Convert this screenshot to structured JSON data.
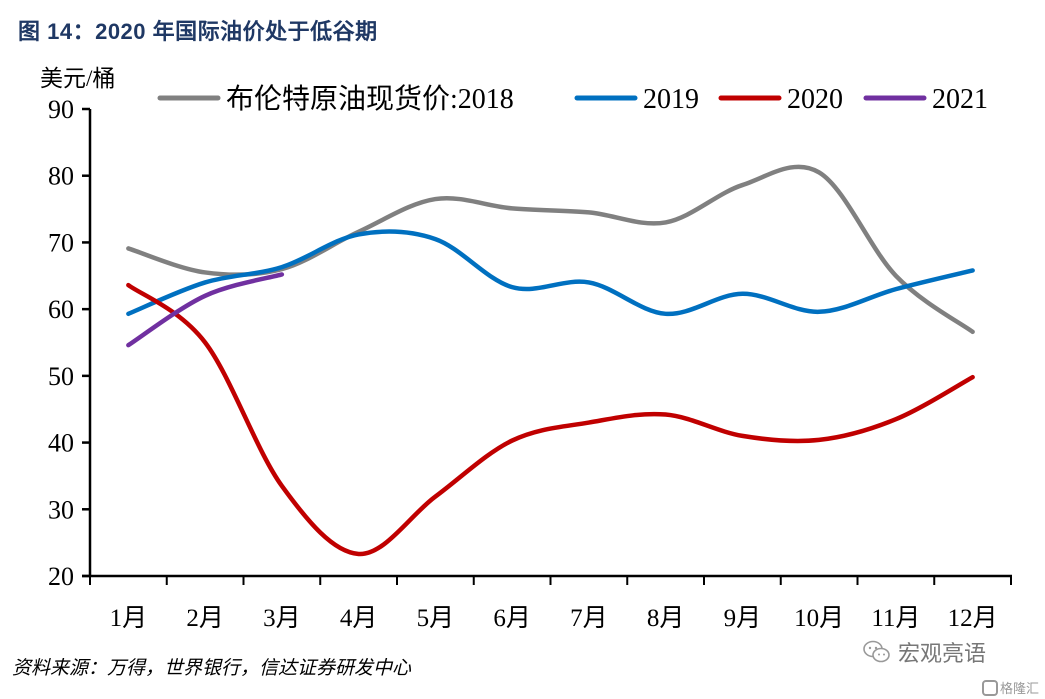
{
  "header": {
    "title": "图 14：2020 年国际油价处于低谷期"
  },
  "footer": {
    "source": "资料来源：万得，世界银行，信达证券研发中心"
  },
  "watermark": {
    "text": "宏观亮语",
    "logo_text": "格隆汇"
  },
  "chart_data": {
    "type": "line",
    "title": "图 14：2020 年国际油价处于低谷期",
    "ylabel": "美元/桶",
    "xlabel": "",
    "ylim": [
      20,
      90
    ],
    "yticks": [
      20,
      30,
      40,
      50,
      60,
      70,
      80,
      90
    ],
    "categories": [
      "1月",
      "2月",
      "3月",
      "4月",
      "5月",
      "6月",
      "7月",
      "8月",
      "9月",
      "10月",
      "11月",
      "12月"
    ],
    "legend_position": "top",
    "grid": false,
    "series": [
      {
        "name": "布伦特原油现货价:2018",
        "color": "#808080",
        "values": [
          69.1,
          65.5,
          66.0,
          71.6,
          76.5,
          75.1,
          74.5,
          73.0,
          78.6,
          80.5,
          65.0,
          56.6
        ]
      },
      {
        "name": "2019",
        "color": "#0070c0",
        "values": [
          59.3,
          64.0,
          66.3,
          71.2,
          70.5,
          63.3,
          64.0,
          59.3,
          62.3,
          59.6,
          63.0,
          65.8
        ]
      },
      {
        "name": "2020",
        "color": "#c00000",
        "values": [
          63.6,
          55.0,
          33.5,
          23.3,
          31.9,
          40.3,
          43.0,
          44.2,
          41.0,
          40.4,
          43.5,
          49.8
        ]
      },
      {
        "name": "2021",
        "color": "#7030a0",
        "values": [
          54.6,
          62.0,
          65.2
        ]
      }
    ]
  }
}
